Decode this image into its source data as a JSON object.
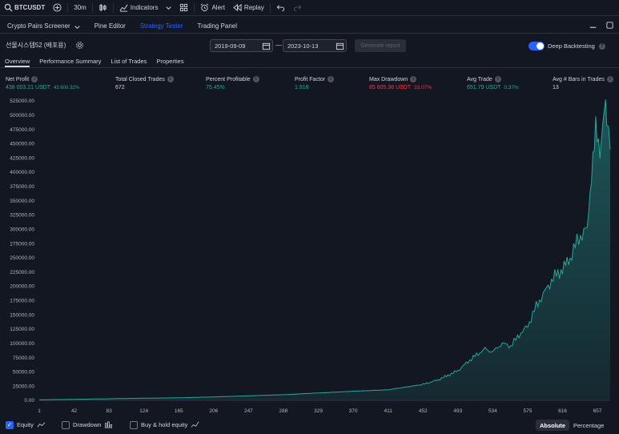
{
  "toolbar": {
    "symbol": "BTCUSDT",
    "interval": "30m",
    "indicators": "Indicators",
    "alert": "Alert",
    "replay": "Replay"
  },
  "panel_tabs": [
    "Crypto Pairs Screener",
    "Pine Editor",
    "Strategy Tester",
    "Trading Panel"
  ],
  "strategy": {
    "name": "선물시스템52 (배포용)",
    "date_from": "2019-09-09",
    "date_to": "2023-10-13",
    "date_sep": "—",
    "generate_label": "Generate report",
    "deep_backtesting_label": "Deep Backtesting",
    "deep_backtesting_on": true
  },
  "subtabs": [
    "Overview",
    "Performance Summary",
    "List of Trades",
    "Properties"
  ],
  "metrics": {
    "net_profit": {
      "label": "Net Profit",
      "value": "438 003.21 USDT",
      "pct": "43 800.32%"
    },
    "total_closed_trades": {
      "label": "Total Closed Trades",
      "value": "672"
    },
    "percent_profitable": {
      "label": "Percent Profitable",
      "value": "75.45%"
    },
    "profit_factor": {
      "label": "Profit Factor",
      "value": "1.918"
    },
    "max_drawdown": {
      "label": "Max Drawdown",
      "value": "85 605.36 USDT",
      "pct": "33.07%"
    },
    "avg_trade": {
      "label": "Avg Trade",
      "value": "651.79 USDT",
      "pct": "0.37%"
    },
    "avg_bars": {
      "label": "Avg # Bars in Trades",
      "value": "13"
    }
  },
  "bottom": {
    "equity": "Equity",
    "drawdown": "Drawdown",
    "buy_hold": "Buy & hold equity",
    "absolute": "Absolute",
    "percentage": "Percentage"
  },
  "colors": {
    "background": "#131722",
    "accent": "#2962ff",
    "positive": "#26a69a",
    "negative": "#f23645",
    "equity_line": "#26a69a"
  },
  "chart_data": {
    "type": "area",
    "title": "",
    "xlabel": "",
    "ylabel": "",
    "ylim": [
      0,
      525000
    ],
    "xlim": [
      1,
      672
    ],
    "y_ticks": [
      "525000.00",
      "500000.00",
      "475000.00",
      "450000.00",
      "425000.00",
      "400000.00",
      "375000.00",
      "350000.00",
      "325000.00",
      "300000.00",
      "275000.00",
      "250000.00",
      "225000.00",
      "200000.00",
      "175000.00",
      "150000.00",
      "125000.00",
      "100000.00",
      "75000.00",
      "50000.00",
      "25000.00",
      "0.00"
    ],
    "x_ticks": [
      "1",
      "42",
      "83",
      "124",
      "165",
      "206",
      "247",
      "288",
      "329",
      "370",
      "411",
      "452",
      "493",
      "534",
      "575",
      "616",
      "657"
    ],
    "series": [
      {
        "x": [
          1,
          42,
          83,
          124,
          165,
          206,
          247,
          288,
          329,
          370,
          411,
          452,
          470,
          493,
          505,
          515,
          525,
          534,
          545,
          555,
          565,
          575,
          585,
          595,
          605,
          616,
          625,
          635,
          645,
          650,
          655,
          660,
          665,
          668,
          672
        ],
        "y": [
          1000,
          1800,
          2800,
          3800,
          4500,
          6000,
          8000,
          10000,
          13000,
          16000,
          18500,
          28000,
          36000,
          52000,
          68000,
          80000,
          90000,
          85000,
          100000,
          95000,
          115000,
          130000,
          165000,
          190000,
          215000,
          230000,
          250000,
          285000,
          300000,
          400000,
          470000,
          440000,
          510000,
          490000,
          440000
        ]
      }
    ]
  }
}
